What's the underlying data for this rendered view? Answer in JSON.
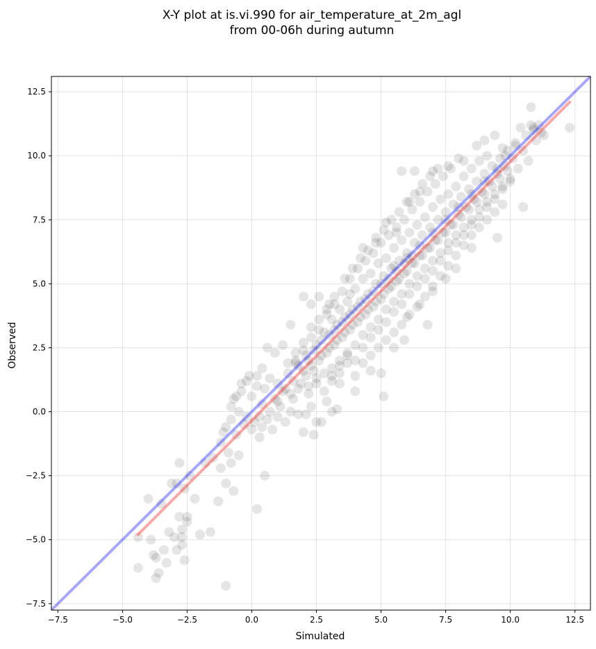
{
  "chart_data": {
    "type": "scatter",
    "title_line1": "X-Y plot at is.vi.990 for air_temperature_at_2m_agl",
    "title_line2": "from 00-06h during autumn",
    "xlabel": "Simulated",
    "ylabel": "Observed",
    "xlim": [
      -7.75,
      13.1
    ],
    "ylim": [
      -7.75,
      13.1
    ],
    "xticks": [
      -7.5,
      -5.0,
      -2.5,
      0.0,
      2.5,
      5.0,
      7.5,
      10.0,
      12.5
    ],
    "yticks": [
      -7.5,
      -5.0,
      -2.5,
      0.0,
      2.5,
      5.0,
      7.5,
      10.0,
      12.5
    ],
    "xtick_labels": [
      "−7.5",
      "−5.0",
      "−2.5",
      "0.0",
      "2.5",
      "5.0",
      "7.5",
      "10.0",
      "12.5"
    ],
    "ytick_labels": [
      "−7.5",
      "−5.0",
      "−2.5",
      "0.0",
      "2.5",
      "5.0",
      "7.5",
      "10.0",
      "12.5"
    ],
    "grid": true,
    "point_color": "#000000",
    "point_opacity": 0.1,
    "one_to_one_line": {
      "color": "#0000ff",
      "opacity": 0.35,
      "start": [
        -7.75,
        -7.75
      ],
      "end": [
        13.1,
        13.1
      ]
    },
    "fit_line": {
      "color": "#ff0000",
      "opacity": 0.35,
      "start": [
        -4.4,
        -4.8
      ],
      "end": [
        12.3,
        12.1
      ]
    },
    "points": [
      [
        -4.4,
        -4.9
      ],
      [
        -4.4,
        -6.1
      ],
      [
        -3.8,
        -5.6
      ],
      [
        -3.7,
        -5.7
      ],
      [
        -3.7,
        -6.5
      ],
      [
        -3.6,
        -6.3
      ],
      [
        -3.9,
        -5.0
      ],
      [
        -3.3,
        -5.9
      ],
      [
        -3.4,
        -5.4
      ],
      [
        -3.2,
        -4.7
      ],
      [
        -4.0,
        -3.4
      ],
      [
        -3.5,
        -3.6
      ],
      [
        -3.0,
        -4.9
      ],
      [
        -2.9,
        -5.4
      ],
      [
        -2.7,
        -4.9
      ],
      [
        -2.7,
        -5.2
      ],
      [
        -2.8,
        -4.1
      ],
      [
        -2.7,
        -4.6
      ],
      [
        -2.5,
        -4.1
      ],
      [
        -2.5,
        -4.3
      ],
      [
        -2.6,
        -5.8
      ],
      [
        -3.1,
        -2.8
      ],
      [
        -2.9,
        -2.8
      ],
      [
        -2.8,
        -2.0
      ],
      [
        -2.6,
        -3.0
      ],
      [
        -2.4,
        -2.5
      ],
      [
        -2.2,
        -3.4
      ],
      [
        -2.0,
        -4.8
      ],
      [
        -1.6,
        -4.7
      ],
      [
        -1.3,
        -3.5
      ],
      [
        -1.0,
        -6.8
      ],
      [
        -1.8,
        -2.0
      ],
      [
        -1.5,
        -1.8
      ],
      [
        -1.2,
        -2.2
      ],
      [
        -1.0,
        -2.8
      ],
      [
        -0.7,
        -3.1
      ],
      [
        -1.2,
        -1.2
      ],
      [
        -0.9,
        -1.6
      ],
      [
        -0.8,
        -2.0
      ],
      [
        -0.5,
        -1.7
      ],
      [
        0.2,
        -3.8
      ],
      [
        0.5,
        -2.5
      ],
      [
        -1.1,
        -0.8
      ],
      [
        -1.0,
        -0.6
      ],
      [
        -0.8,
        -0.3
      ],
      [
        -0.6,
        -0.9
      ],
      [
        -0.5,
        0.0
      ],
      [
        -0.3,
        -0.5
      ],
      [
        -0.2,
        -0.2
      ],
      [
        0.0,
        -0.7
      ],
      [
        0.1,
        -0.4
      ],
      [
        0.3,
        -1.0
      ],
      [
        0.4,
        -0.6
      ],
      [
        0.6,
        -0.3
      ],
      [
        0.8,
        -0.7
      ],
      [
        1.0,
        -0.2
      ],
      [
        1.1,
        0.2
      ],
      [
        1.3,
        -0.4
      ],
      [
        1.5,
        0.0
      ],
      [
        1.8,
        -0.1
      ],
      [
        2.0,
        -0.8
      ],
      [
        2.1,
        -0.1
      ],
      [
        2.3,
        0.2
      ],
      [
        2.5,
        -0.4
      ],
      [
        2.7,
        -0.4
      ],
      [
        2.4,
        -0.9
      ],
      [
        2.9,
        0.4
      ],
      [
        3.1,
        0.0
      ],
      [
        3.3,
        0.1
      ],
      [
        -0.7,
        0.5
      ],
      [
        -0.4,
        0.8
      ],
      [
        -0.2,
        1.2
      ],
      [
        0.0,
        0.6
      ],
      [
        0.2,
        1.0
      ],
      [
        0.4,
        0.3
      ],
      [
        0.5,
        0.9
      ],
      [
        0.7,
        1.3
      ],
      [
        0.9,
        0.5
      ],
      [
        1.0,
        1.1
      ],
      [
        1.2,
        0.8
      ],
      [
        1.4,
        1.5
      ],
      [
        1.5,
        0.7
      ],
      [
        1.6,
        1.2
      ],
      [
        1.7,
        1.9
      ],
      [
        1.8,
        0.9
      ],
      [
        2.0,
        1.6
      ],
      [
        2.1,
        2.2
      ],
      [
        2.2,
        1.0
      ],
      [
        2.3,
        1.8
      ],
      [
        2.4,
        2.4
      ],
      [
        2.5,
        1.3
      ],
      [
        2.6,
        2.0
      ],
      [
        2.7,
        2.8
      ],
      [
        2.8,
        1.5
      ],
      [
        2.9,
        2.3
      ],
      [
        3.0,
        3.0
      ],
      [
        3.1,
        1.7
      ],
      [
        3.2,
        2.6
      ],
      [
        3.3,
        3.4
      ],
      [
        3.4,
        2.0
      ],
      [
        3.5,
        2.9
      ],
      [
        3.6,
        3.7
      ],
      [
        3.7,
        2.3
      ],
      [
        3.8,
        3.2
      ],
      [
        3.9,
        4.0
      ],
      [
        4.0,
        2.6
      ],
      [
        4.1,
        3.5
      ],
      [
        4.2,
        4.3
      ],
      [
        4.3,
        3.0
      ],
      [
        4.4,
        3.8
      ],
      [
        4.5,
        4.6
      ],
      [
        4.6,
        3.3
      ],
      [
        4.7,
        4.1
      ],
      [
        4.8,
        5.0
      ],
      [
        4.9,
        3.6
      ],
      [
        5.0,
        4.4
      ],
      [
        5.1,
        5.3
      ],
      [
        5.2,
        4.0
      ],
      [
        5.3,
        4.8
      ],
      [
        5.4,
        5.6
      ],
      [
        5.5,
        4.3
      ],
      [
        5.6,
        5.1
      ],
      [
        5.7,
        5.9
      ],
      [
        5.8,
        4.6
      ],
      [
        5.9,
        5.4
      ],
      [
        6.0,
        6.2
      ],
      [
        6.1,
        5.0
      ],
      [
        6.2,
        5.8
      ],
      [
        6.3,
        6.6
      ],
      [
        6.4,
        5.3
      ],
      [
        6.5,
        6.1
      ],
      [
        6.6,
        6.9
      ],
      [
        6.7,
        5.6
      ],
      [
        6.8,
        6.4
      ],
      [
        6.9,
        7.2
      ],
      [
        7.0,
        5.9
      ],
      [
        7.1,
        6.7
      ],
      [
        7.2,
        7.5
      ],
      [
        7.3,
        6.2
      ],
      [
        7.4,
        7.0
      ],
      [
        7.5,
        7.8
      ],
      [
        7.6,
        6.6
      ],
      [
        7.7,
        7.3
      ],
      [
        7.8,
        8.1
      ],
      [
        7.9,
        6.9
      ],
      [
        8.0,
        7.7
      ],
      [
        8.1,
        8.4
      ],
      [
        8.2,
        7.2
      ],
      [
        8.3,
        8.0
      ],
      [
        8.4,
        8.7
      ],
      [
        8.5,
        7.5
      ],
      [
        8.6,
        8.3
      ],
      [
        8.7,
        9.0
      ],
      [
        8.8,
        7.9
      ],
      [
        8.9,
        8.6
      ],
      [
        9.0,
        9.3
      ],
      [
        9.1,
        8.2
      ],
      [
        9.2,
        9.0
      ],
      [
        9.3,
        9.6
      ],
      [
        9.4,
        8.5
      ],
      [
        9.5,
        9.3
      ],
      [
        9.6,
        9.9
      ],
      [
        9.7,
        8.8
      ],
      [
        9.8,
        9.6
      ],
      [
        9.9,
        10.2
      ],
      [
        10.0,
        9.1
      ],
      [
        10.1,
        9.9
      ],
      [
        10.2,
        10.5
      ],
      [
        10.3,
        9.5
      ],
      [
        10.5,
        10.2
      ],
      [
        10.6,
        10.8
      ],
      [
        10.7,
        9.8
      ],
      [
        10.8,
        11.2
      ],
      [
        10.9,
        11.0
      ],
      [
        11.0,
        10.6
      ],
      [
        11.1,
        11.2
      ],
      [
        11.3,
        10.8
      ],
      [
        12.3,
        11.1
      ],
      [
        10.8,
        11.9
      ],
      [
        10.5,
        8.0
      ],
      [
        9.5,
        6.8
      ],
      [
        8.5,
        6.4
      ],
      [
        7.9,
        5.6
      ],
      [
        7.5,
        5.2
      ],
      [
        7.0,
        4.7
      ],
      [
        6.5,
        4.2
      ],
      [
        6.0,
        3.7
      ],
      [
        6.8,
        3.4
      ],
      [
        5.9,
        2.8
      ],
      [
        5.5,
        2.5
      ],
      [
        5.0,
        1.5
      ],
      [
        4.6,
        1.6
      ],
      [
        5.1,
        0.6
      ],
      [
        4.0,
        0.8
      ],
      [
        3.4,
        1.1
      ],
      [
        3.8,
        4.6
      ],
      [
        3.0,
        4.2
      ],
      [
        2.6,
        4.5
      ],
      [
        2.0,
        4.5
      ],
      [
        2.3,
        4.2
      ],
      [
        4.3,
        6.4
      ],
      [
        4.8,
        6.6
      ],
      [
        5.2,
        7.4
      ],
      [
        5.6,
        7.0
      ],
      [
        6.1,
        8.2
      ],
      [
        6.5,
        8.6
      ],
      [
        7.0,
        9.4
      ],
      [
        7.6,
        9.6
      ],
      [
        5.8,
        9.4
      ],
      [
        6.3,
        9.4
      ],
      [
        8.2,
        9.8
      ],
      [
        8.7,
        10.4
      ],
      [
        9.0,
        10.6
      ],
      [
        9.4,
        10.8
      ],
      [
        9.8,
        10.0
      ],
      [
        10.2,
        10.4
      ],
      [
        10.4,
        11.1
      ],
      [
        11.2,
        10.9
      ],
      [
        10.9,
        11.1
      ],
      [
        9.7,
        10.3
      ],
      [
        1.5,
        3.4
      ],
      [
        1.2,
        2.6
      ],
      [
        0.9,
        2.3
      ],
      [
        0.6,
        2.5
      ],
      [
        0.4,
        1.7
      ],
      [
        0.2,
        1.4
      ],
      [
        -0.1,
        1.4
      ],
      [
        -0.4,
        1.1
      ],
      [
        -0.6,
        0.6
      ],
      [
        -0.8,
        0.2
      ],
      [
        1.7,
        2.3
      ],
      [
        2.0,
        2.7
      ],
      [
        2.3,
        3.3
      ],
      [
        2.6,
        3.6
      ],
      [
        2.9,
        4.0
      ],
      [
        3.2,
        4.5
      ],
      [
        3.5,
        4.7
      ],
      [
        3.8,
        5.2
      ],
      [
        4.1,
        5.6
      ],
      [
        4.4,
        5.9
      ],
      [
        4.7,
        6.2
      ],
      [
        5.0,
        6.6
      ],
      [
        5.3,
        6.9
      ],
      [
        5.6,
        7.2
      ],
      [
        5.9,
        7.5
      ],
      [
        6.2,
        7.9
      ],
      [
        6.5,
        8.2
      ],
      [
        6.8,
        8.6
      ],
      [
        7.1,
        8.9
      ],
      [
        7.4,
        9.2
      ],
      [
        7.7,
        9.5
      ],
      [
        8.0,
        9.9
      ],
      [
        3.1,
        1.2
      ],
      [
        3.4,
        1.8
      ],
      [
        3.7,
        2.2
      ],
      [
        4.0,
        2.0
      ],
      [
        4.3,
        2.5
      ],
      [
        4.6,
        2.9
      ],
      [
        4.9,
        3.2
      ],
      [
        5.2,
        3.5
      ],
      [
        5.5,
        3.9
      ],
      [
        5.8,
        4.2
      ],
      [
        6.1,
        4.6
      ],
      [
        6.4,
        4.9
      ],
      [
        6.7,
        5.2
      ],
      [
        7.0,
        5.5
      ],
      [
        7.3,
        5.9
      ],
      [
        7.6,
        6.3
      ],
      [
        7.9,
        6.6
      ],
      [
        8.2,
        6.9
      ],
      [
        8.5,
        7.3
      ],
      [
        8.8,
        7.6
      ],
      [
        9.1,
        8.0
      ],
      [
        9.4,
        8.3
      ],
      [
        9.7,
        8.7
      ],
      [
        10.0,
        9.0
      ],
      [
        2.2,
        2.0
      ],
      [
        2.5,
        2.6
      ],
      [
        2.8,
        3.1
      ],
      [
        3.1,
        3.6
      ],
      [
        3.4,
        4.0
      ],
      [
        3.7,
        4.3
      ],
      [
        4.0,
        4.8
      ],
      [
        4.3,
        5.2
      ],
      [
        4.6,
        5.4
      ],
      [
        4.9,
        5.8
      ],
      [
        5.2,
        6.0
      ],
      [
        5.5,
        6.4
      ],
      [
        5.8,
        6.7
      ],
      [
        6.1,
        7.0
      ],
      [
        6.4,
        7.3
      ],
      [
        6.7,
        7.6
      ],
      [
        7.0,
        8.0
      ],
      [
        7.3,
        8.3
      ],
      [
        7.6,
        8.5
      ],
      [
        7.9,
        8.8
      ],
      [
        8.2,
        9.2
      ],
      [
        8.5,
        9.5
      ],
      [
        8.8,
        9.8
      ],
      [
        9.1,
        10.0
      ],
      [
        1.8,
        1.8
      ],
      [
        2.1,
        1.4
      ],
      [
        2.4,
        1.6
      ],
      [
        2.7,
        2.2
      ],
      [
        3.0,
        2.5
      ],
      [
        3.3,
        2.8
      ],
      [
        3.6,
        3.1
      ],
      [
        3.9,
        3.4
      ],
      [
        4.2,
        3.7
      ],
      [
        4.5,
        4.0
      ],
      [
        4.8,
        4.3
      ],
      [
        5.1,
        4.6
      ],
      [
        5.4,
        4.9
      ],
      [
        5.7,
        5.2
      ],
      [
        6.0,
        5.5
      ],
      [
        6.3,
        5.8
      ],
      [
        6.6,
        6.1
      ],
      [
        6.9,
        6.4
      ],
      [
        7.2,
        6.7
      ],
      [
        7.5,
        7.0
      ],
      [
        7.8,
        7.3
      ],
      [
        8.1,
        7.6
      ],
      [
        8.4,
        7.9
      ],
      [
        8.7,
        8.2
      ],
      [
        9.0,
        8.5
      ],
      [
        9.3,
        8.8
      ],
      [
        9.6,
        9.1
      ],
      [
        9.9,
        9.4
      ],
      [
        1.0,
        0.4
      ],
      [
        1.3,
        0.9
      ],
      [
        0.7,
        0.0
      ],
      [
        0.3,
        -0.2
      ],
      [
        1.6,
        0.5
      ],
      [
        1.9,
        1.1
      ],
      [
        2.2,
        0.7
      ],
      [
        2.5,
        1.1
      ],
      [
        2.8,
        0.8
      ],
      [
        3.1,
        1.4
      ],
      [
        3.4,
        1.5
      ],
      [
        3.7,
        1.9
      ],
      [
        4.0,
        1.4
      ],
      [
        4.3,
        1.9
      ],
      [
        4.6,
        2.2
      ],
      [
        4.9,
        2.5
      ],
      [
        5.2,
        2.8
      ],
      [
        5.5,
        3.1
      ],
      [
        5.8,
        3.4
      ],
      [
        6.1,
        3.8
      ],
      [
        6.4,
        4.1
      ],
      [
        6.7,
        4.5
      ],
      [
        7.0,
        4.9
      ],
      [
        7.3,
        5.3
      ],
      [
        7.6,
        5.7
      ],
      [
        7.9,
        6.1
      ],
      [
        8.2,
        6.5
      ],
      [
        8.5,
        6.9
      ],
      [
        8.8,
        7.2
      ],
      [
        9.1,
        7.5
      ],
      [
        9.4,
        7.8
      ],
      [
        9.7,
        8.1
      ],
      [
        3.6,
        5.2
      ],
      [
        3.9,
        5.6
      ],
      [
        4.2,
        6.0
      ],
      [
        4.5,
        6.3
      ],
      [
        4.8,
        6.8
      ],
      [
        5.1,
        7.1
      ],
      [
        5.4,
        7.5
      ],
      [
        5.7,
        7.8
      ],
      [
        6.0,
        8.2
      ],
      [
        6.3,
        8.5
      ],
      [
        6.6,
        8.9
      ],
      [
        6.9,
        9.2
      ],
      [
        7.2,
        9.5
      ],
      [
        2.9,
        3.8
      ],
      [
        3.2,
        4.2
      ],
      [
        2.6,
        3.2
      ],
      [
        2.3,
        2.9
      ],
      [
        2.0,
        2.4
      ],
      [
        1.7,
        2.0
      ],
      [
        1.4,
        1.9
      ],
      [
        5.3,
        5.2
      ],
      [
        5.6,
        5.5
      ],
      [
        5.9,
        5.8
      ],
      [
        6.2,
        6.1
      ],
      [
        4.7,
        4.7
      ],
      [
        4.4,
        4.4
      ],
      [
        4.1,
        4.1
      ],
      [
        3.8,
        3.8
      ],
      [
        3.5,
        3.5
      ],
      [
        3.2,
        3.2
      ],
      [
        5.0,
        5.0
      ],
      [
        5.5,
        5.7
      ],
      [
        6.0,
        6.0
      ],
      [
        6.5,
        6.5
      ],
      [
        7.0,
        7.0
      ],
      [
        7.5,
        7.5
      ],
      [
        8.0,
        8.0
      ],
      [
        8.5,
        8.5
      ],
      [
        9.0,
        9.0
      ],
      [
        9.5,
        9.5
      ]
    ]
  }
}
